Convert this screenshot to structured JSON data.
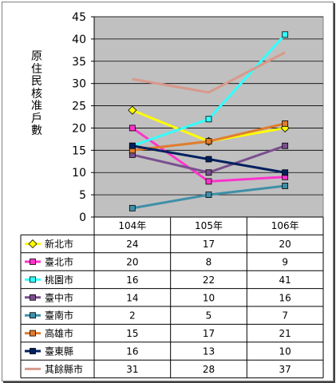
{
  "chart_data": {
    "type": "line",
    "title": "",
    "xlabel": "",
    "ylabel": "原住民核准戶數",
    "ylim": [
      0,
      45
    ],
    "yticks": [
      0,
      5,
      10,
      15,
      20,
      25,
      30,
      35,
      40,
      45
    ],
    "categories": [
      "104年",
      "105年",
      "106年"
    ],
    "grid": true,
    "legend": "data table below plot",
    "series": [
      {
        "name": "新北市",
        "values": [
          24,
          17,
          20
        ],
        "color": "#ffff00",
        "marker": "diamond"
      },
      {
        "name": "臺北市",
        "values": [
          20,
          8,
          9
        ],
        "color": "#ff33cc",
        "marker": "square"
      },
      {
        "name": "桃園市",
        "values": [
          16,
          22,
          41
        ],
        "color": "#33ffff",
        "marker": "square"
      },
      {
        "name": "臺中市",
        "values": [
          14,
          10,
          16
        ],
        "color": "#7a4f8f",
        "marker": "square"
      },
      {
        "name": "臺南市",
        "values": [
          2,
          5,
          7
        ],
        "color": "#3f8fa8",
        "marker": "square"
      },
      {
        "name": "高雄市",
        "values": [
          15,
          17,
          21
        ],
        "color": "#e07d2e",
        "marker": "square"
      },
      {
        "name": "臺東縣",
        "values": [
          16,
          13,
          10
        ],
        "color": "#00205f",
        "marker": "square"
      },
      {
        "name": "其餘縣市",
        "values": [
          31,
          28,
          37
        ],
        "color": "#d8998c",
        "marker": "none"
      }
    ]
  }
}
